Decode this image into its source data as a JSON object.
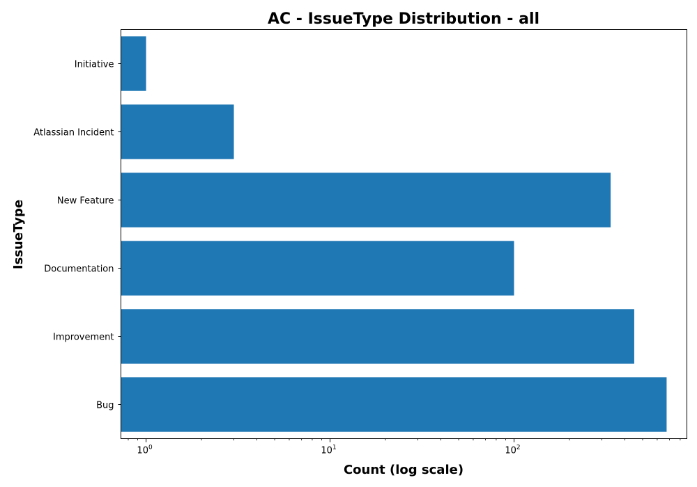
{
  "chart_data": {
    "type": "bar",
    "orientation": "horizontal",
    "title": "AC - IssueType Distribution - all",
    "xlabel": "Count (log scale)",
    "ylabel": "IssueType",
    "x_scale": "log",
    "xlim": [
      0.73,
      870
    ],
    "x_major_ticks": [
      {
        "value": 1,
        "base": "10",
        "exp": "0"
      },
      {
        "value": 10,
        "base": "10",
        "exp": "1"
      },
      {
        "value": 100,
        "base": "10",
        "exp": "2"
      }
    ],
    "categories": [
      "Initiative",
      "Atlassian Incident",
      "New Feature",
      "Documentation",
      "Improvement",
      "Bug"
    ],
    "values": [
      1,
      3,
      335,
      100,
      450,
      675
    ],
    "bar_color": "#1f77b4",
    "grid": false,
    "legend": "none"
  }
}
